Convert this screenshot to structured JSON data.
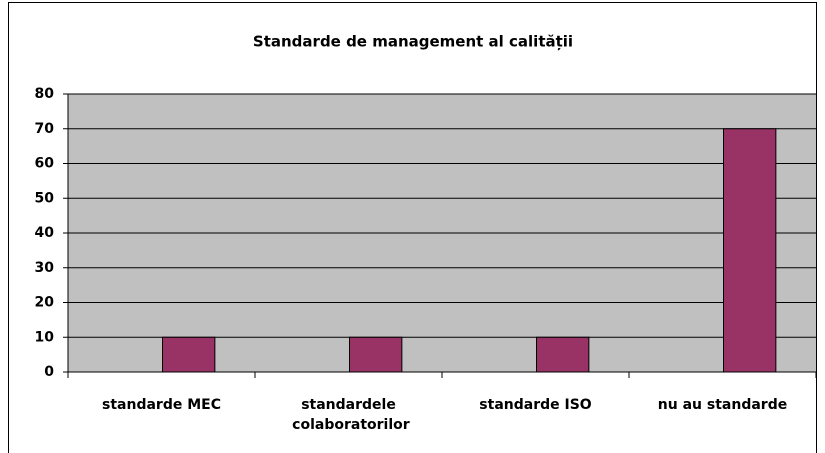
{
  "chart_data": {
    "type": "bar",
    "title": "Standarde de management al calității",
    "categories": [
      "standarde MEC",
      "standardele colaboratorilor",
      "standarde ISO",
      "nu au standarde"
    ],
    "values": [
      10,
      10,
      10,
      70
    ],
    "color": "#993366",
    "ylim": [
      0,
      80
    ],
    "yticks": [
      0,
      10,
      20,
      30,
      40,
      50,
      60,
      70,
      80
    ],
    "grid": true
  }
}
